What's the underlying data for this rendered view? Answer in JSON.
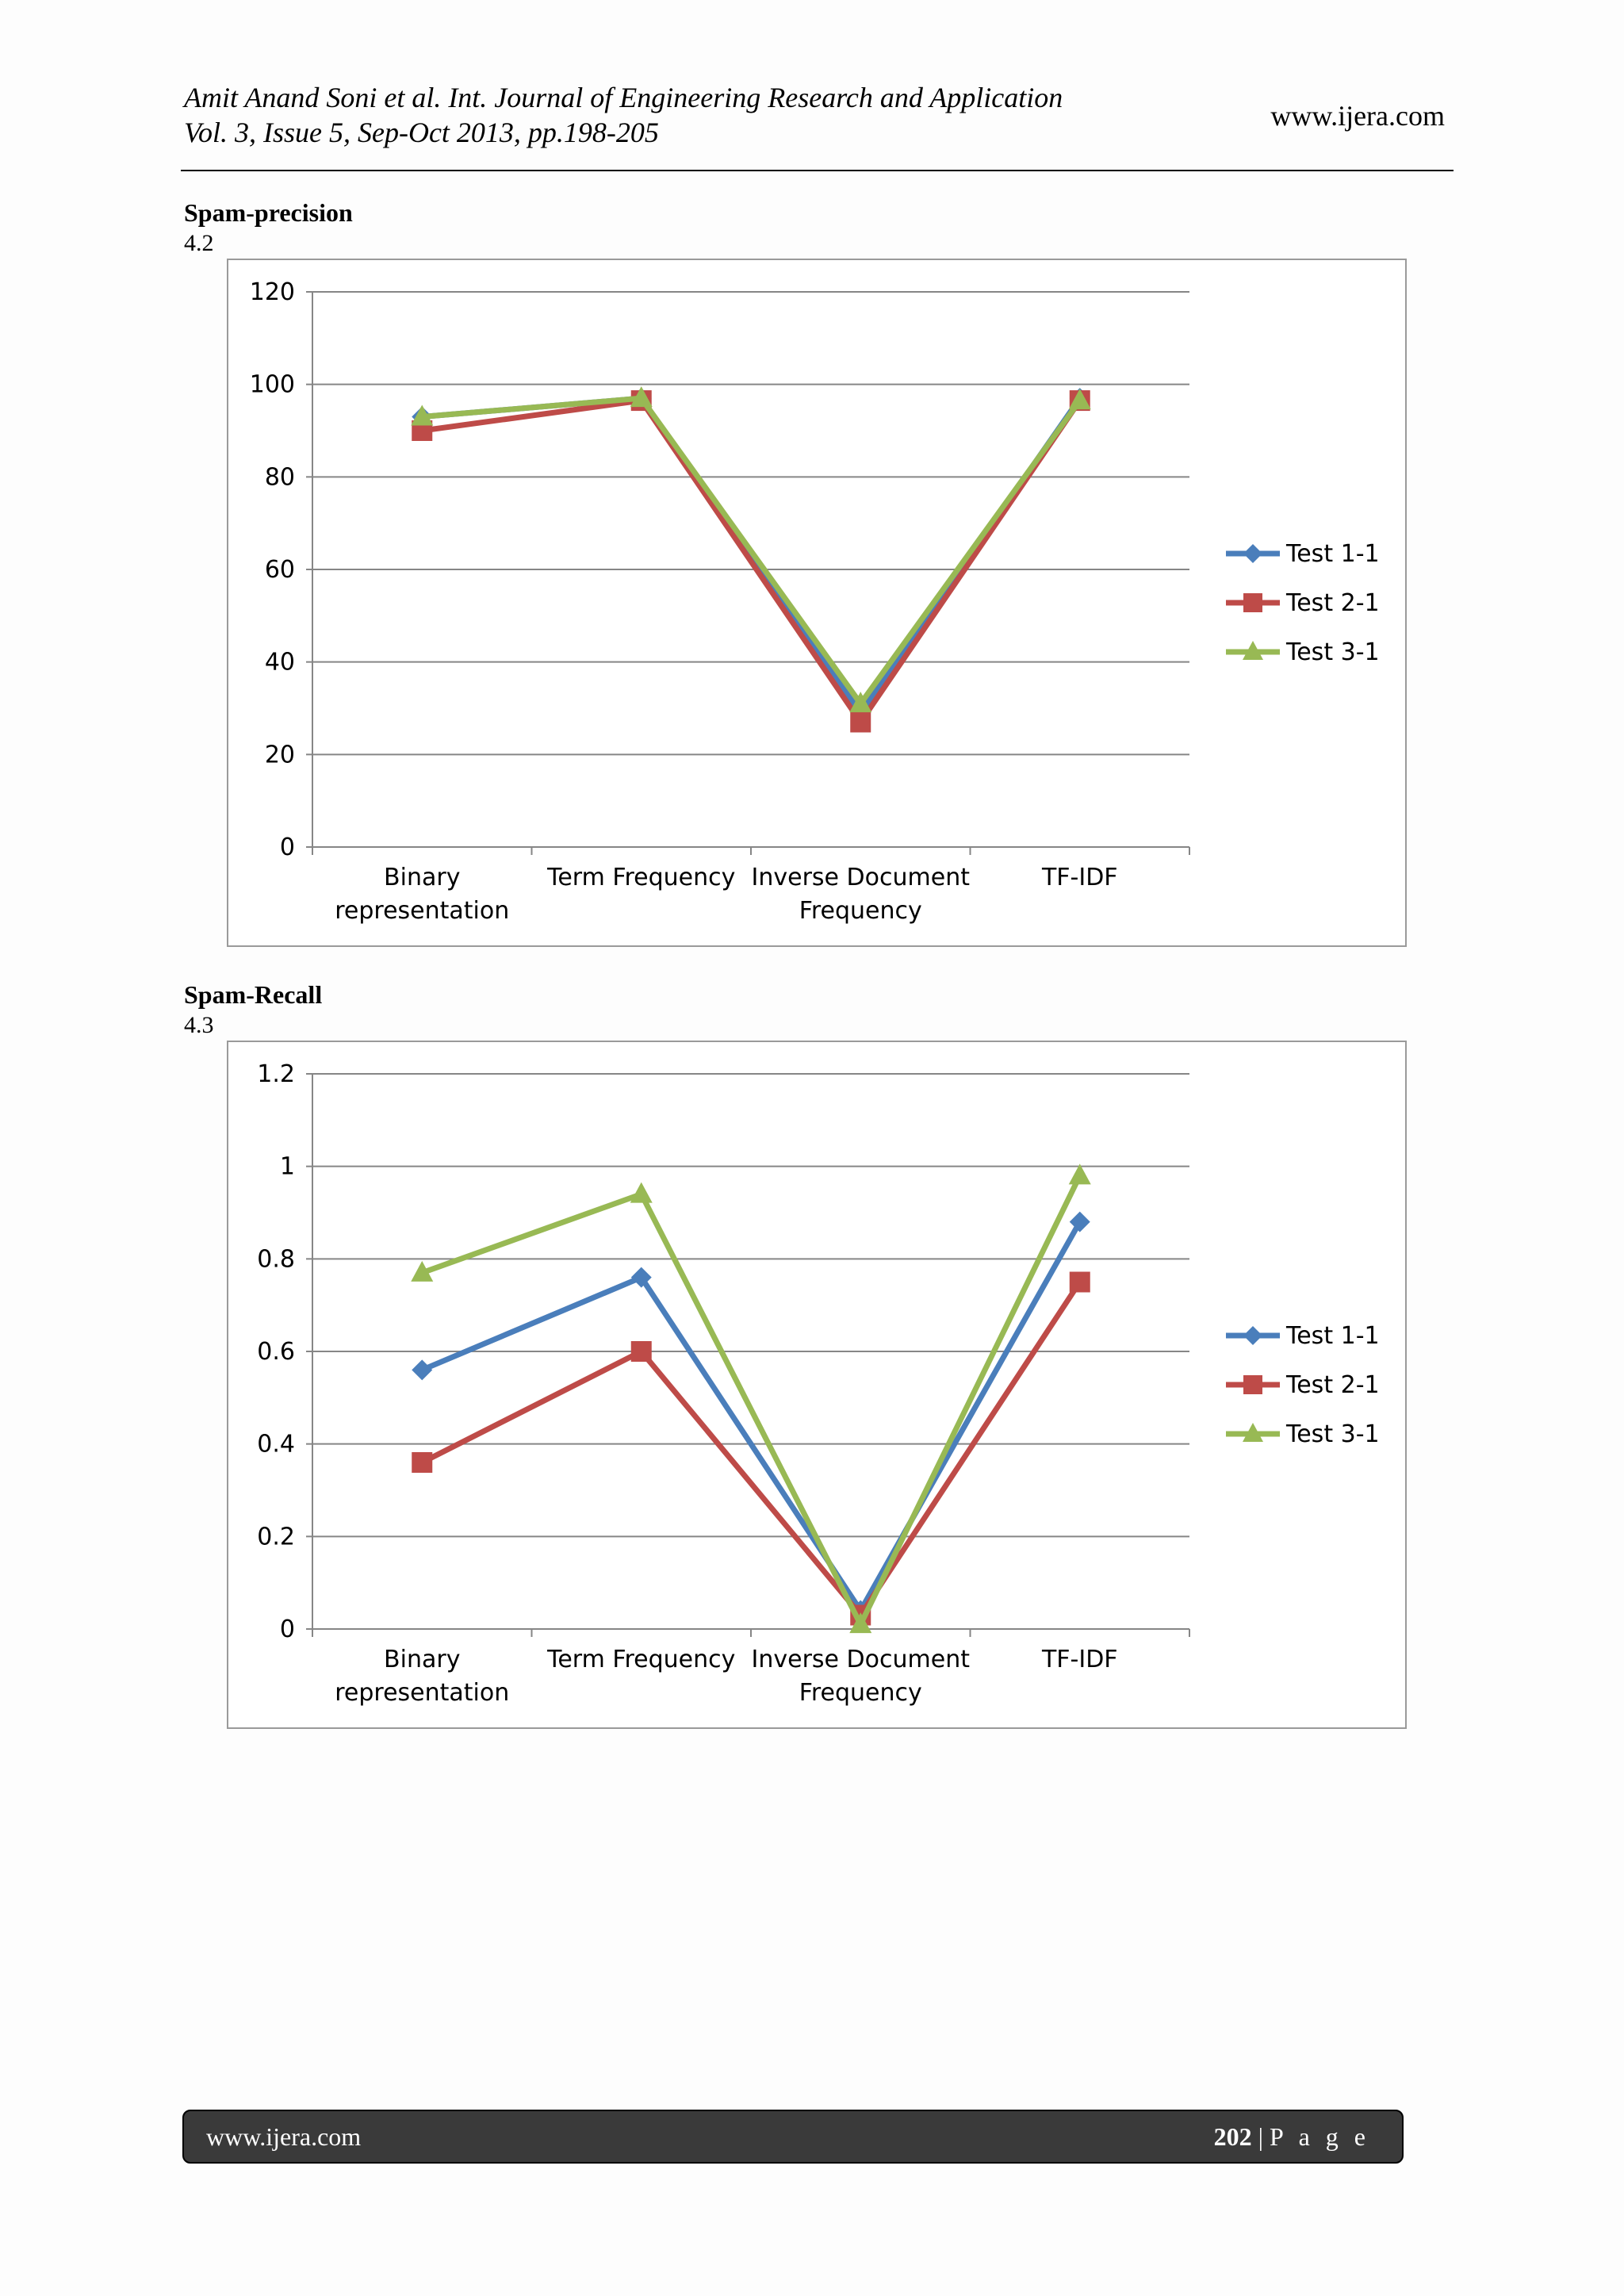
{
  "header": {
    "line1": "Amit Anand Soni et al. Int. Journal of Engineering Research and Application",
    "line2": "Vol. 3, Issue 5, Sep-Oct 2013, pp.198-205",
    "url": "www.ijera.com"
  },
  "sections": [
    {
      "title": "Spam-precision",
      "number": "4.2"
    },
    {
      "title": "Spam-Recall",
      "number": "4.3"
    }
  ],
  "chart_data": [
    {
      "type": "line",
      "title": "Spam-precision",
      "categories": [
        [
          "Binary",
          "representation"
        ],
        [
          "Term Frequency"
        ],
        [
          "Inverse Document",
          "Frequency"
        ],
        [
          "TF-IDF"
        ]
      ],
      "ylim": [
        0,
        120
      ],
      "yticks": [
        "0",
        "20",
        "40",
        "60",
        "80",
        "100",
        "120"
      ],
      "ytick_values": [
        0,
        20,
        40,
        60,
        80,
        100,
        120
      ],
      "grid": true,
      "legend": "right",
      "series": [
        {
          "name": "Test 1-1",
          "color": "#4a7ebb",
          "marker": "diamond",
          "values": [
            93,
            97,
            29,
            97
          ]
        },
        {
          "name": "Test 2-1",
          "color": "#be4b48",
          "marker": "square",
          "values": [
            90,
            96.5,
            27,
            96.5
          ]
        },
        {
          "name": "Test 3-1",
          "color": "#98b954",
          "marker": "triangle",
          "values": [
            93,
            97,
            31,
            96.5
          ]
        }
      ]
    },
    {
      "type": "line",
      "title": "Spam-Recall",
      "categories": [
        [
          "Binary",
          "representation"
        ],
        [
          "Term Frequency"
        ],
        [
          "Inverse Document",
          "Frequency"
        ],
        [
          "TF-IDF"
        ]
      ],
      "ylim": [
        0,
        1.2
      ],
      "yticks": [
        "0",
        "0.2",
        "0.4",
        "0.6",
        "0.8",
        "1",
        "1.2"
      ],
      "ytick_values": [
        0,
        0.2,
        0.4,
        0.6,
        0.8,
        1,
        1.2
      ],
      "grid": true,
      "legend": "right",
      "series": [
        {
          "name": "Test 1-1",
          "color": "#4a7ebb",
          "marker": "diamond",
          "values": [
            0.56,
            0.76,
            0.04,
            0.88
          ]
        },
        {
          "name": "Test 2-1",
          "color": "#be4b48",
          "marker": "square",
          "values": [
            0.36,
            0.6,
            0.03,
            0.75
          ]
        },
        {
          "name": "Test 3-1",
          "color": "#98b954",
          "marker": "triangle",
          "values": [
            0.77,
            0.94,
            0.01,
            0.98
          ]
        }
      ]
    }
  ],
  "footer": {
    "url": "www.ijera.com",
    "page_number": "202",
    "separator": "|",
    "page_label": "P a g e"
  }
}
